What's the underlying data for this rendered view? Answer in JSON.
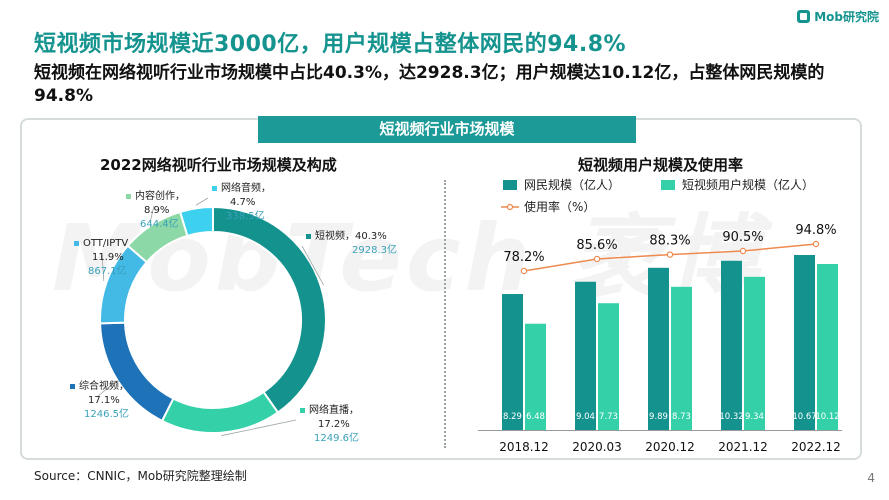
{
  "logo": {
    "text": "Mob研究院"
  },
  "title": "短视频市场规模近3000亿，用户规模占整体网民的94.8%",
  "subtitle": "短视频在网络视听行业市场规模中占比40.3%，达2928.3亿；用户规模达10.12亿，占整体网民规模的94.8%",
  "banner": "短视频行业市场规模",
  "watermark": "MobTech 袤博",
  "source": "Source：CNNIC，Mob研究院整理绘制",
  "page_number": "4",
  "colors": {
    "teal_dark": "#14938f",
    "banner": "#1c9a97",
    "bar_netizen": "#13928e",
    "bar_short_video": "#34d1a9",
    "usage_line": "#ee8a4f"
  },
  "chart_data": [
    {
      "type": "pie",
      "donut": true,
      "title": "2022网络视听行业市场规模及构成",
      "slices": [
        {
          "name": "短视频",
          "percent_label": "40.3%",
          "percent": 40.3,
          "value_label": "2928.3亿",
          "value": 2928.3,
          "color": "#13928e"
        },
        {
          "name": "网络直播",
          "percent_label": "17.2%",
          "percent": 17.2,
          "value_label": "1249.6亿",
          "value": 1249.6,
          "color": "#34d1a9"
        },
        {
          "name": "综合视频",
          "percent_label": "17.1%",
          "percent": 17.1,
          "value_label": "1246.5亿",
          "value": 1246.5,
          "color": "#1d72b8"
        },
        {
          "name": "OTT/IPTV",
          "percent_label": "11.9%",
          "percent": 11.9,
          "value_label": "867.1亿",
          "value": 867.1,
          "color": "#43b9e6"
        },
        {
          "name": "内容创作",
          "percent_label": "8.9%",
          "percent": 8.9,
          "value_label": "644.4亿",
          "value": 644.4,
          "color": "#8cd9a7"
        },
        {
          "name": "网络音频",
          "percent_label": "4.7%",
          "percent": 4.7,
          "value_label": "338.5亿",
          "value": 338.5,
          "color": "#3dd0ef"
        }
      ]
    },
    {
      "type": "bar",
      "title": "短视频用户规模及使用率",
      "categories": [
        "2018.12",
        "2020.03",
        "2020.12",
        "2021.12",
        "2022.12"
      ],
      "series": [
        {
          "name": "网民规模（亿人）",
          "values": [
            8.29,
            9.04,
            9.89,
            10.32,
            10.67
          ],
          "labels": [
            "8.29",
            "9.04",
            "9.89",
            "10.32",
            "10.67"
          ],
          "color": "#13928e"
        },
        {
          "name": "短视频用户规模（亿人）",
          "values": [
            6.48,
            7.73,
            8.73,
            9.34,
            10.12
          ],
          "labels": [
            "6.48",
            "7.73",
            "8.73",
            "9.34",
            "10.12"
          ],
          "color": "#34d1a9"
        }
      ],
      "line_series": {
        "name": "使用率（%）",
        "values": [
          78.2,
          85.6,
          88.3,
          90.5,
          94.8
        ],
        "labels": [
          "78.2%",
          "85.6%",
          "88.3%",
          "90.5%",
          "94.8%"
        ],
        "color": "#ee8a4f"
      },
      "legend_position": "top",
      "grid": false
    }
  ]
}
